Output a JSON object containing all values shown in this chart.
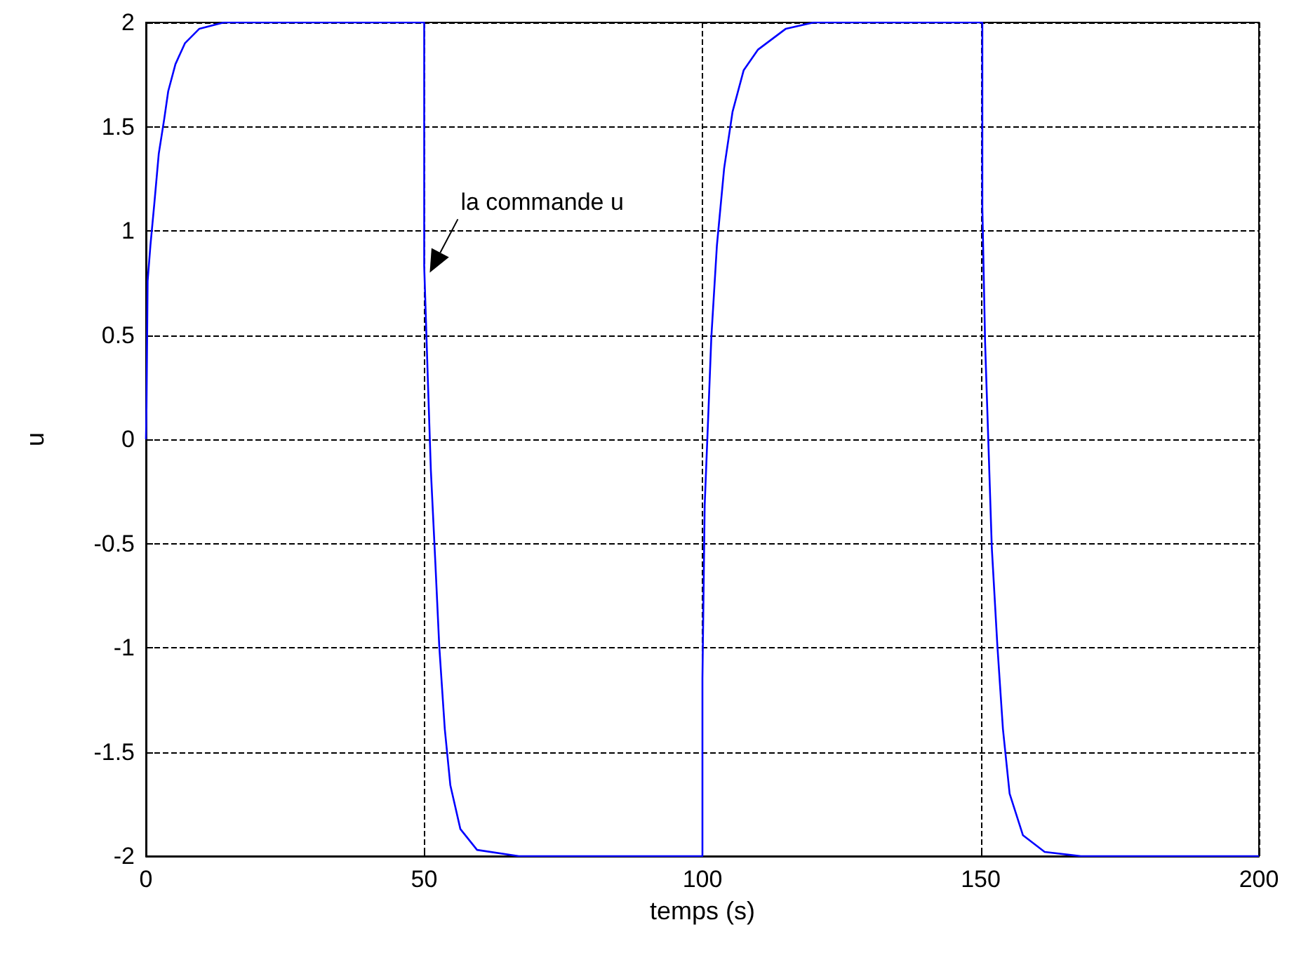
{
  "chart_data": {
    "type": "line",
    "xlabel": "temps (s)",
    "ylabel": "u",
    "x": [
      0,
      0.1,
      0.3,
      0.8,
      1.5,
      2.3,
      3.3,
      4,
      5.3,
      7,
      9.6,
      14,
      50,
      50,
      50.7,
      51.2,
      52,
      52.7,
      53.7,
      54.7,
      56.5,
      59.5,
      67,
      100,
      100,
      100.4,
      101.1,
      101.6,
      102.6,
      103.9,
      105.4,
      107.4,
      110,
      115,
      120,
      150.3,
      150.3,
      150.8,
      151.5,
      152,
      153,
      154,
      155.2,
      157.6,
      161.5,
      168,
      200
    ],
    "series": [
      {
        "color": "#0000ff",
        "values": [
          0,
          0.16,
          0.76,
          0.93,
          1.13,
          1.37,
          1.54,
          1.67,
          1.8,
          1.9,
          1.97,
          2,
          2,
          0.83,
          0.25,
          -0.15,
          -0.59,
          -0.99,
          -1.39,
          -1.66,
          -1.87,
          -1.97,
          -2,
          -2,
          -1.15,
          -0.32,
          0.15,
          0.49,
          0.93,
          1.3,
          1.57,
          1.77,
          1.87,
          1.97,
          2,
          2,
          1.11,
          0.46,
          -0.11,
          -0.52,
          -0.99,
          -1.39,
          -1.7,
          -1.9,
          -1.98,
          -2,
          -2
        ]
      }
    ],
    "xlim": [
      0,
      200
    ],
    "xticks": [
      0,
      50,
      100,
      150,
      200
    ],
    "ylim": [
      -2,
      2
    ],
    "yticks": [
      -2,
      -1.5,
      -1,
      -0.5,
      0,
      0.5,
      1,
      1.5,
      2
    ],
    "grid": true,
    "marker": "none",
    "line_style": "solid",
    "annotations": [
      {
        "text": "la commande u",
        "x": 51,
        "y": 0.8
      }
    ]
  }
}
